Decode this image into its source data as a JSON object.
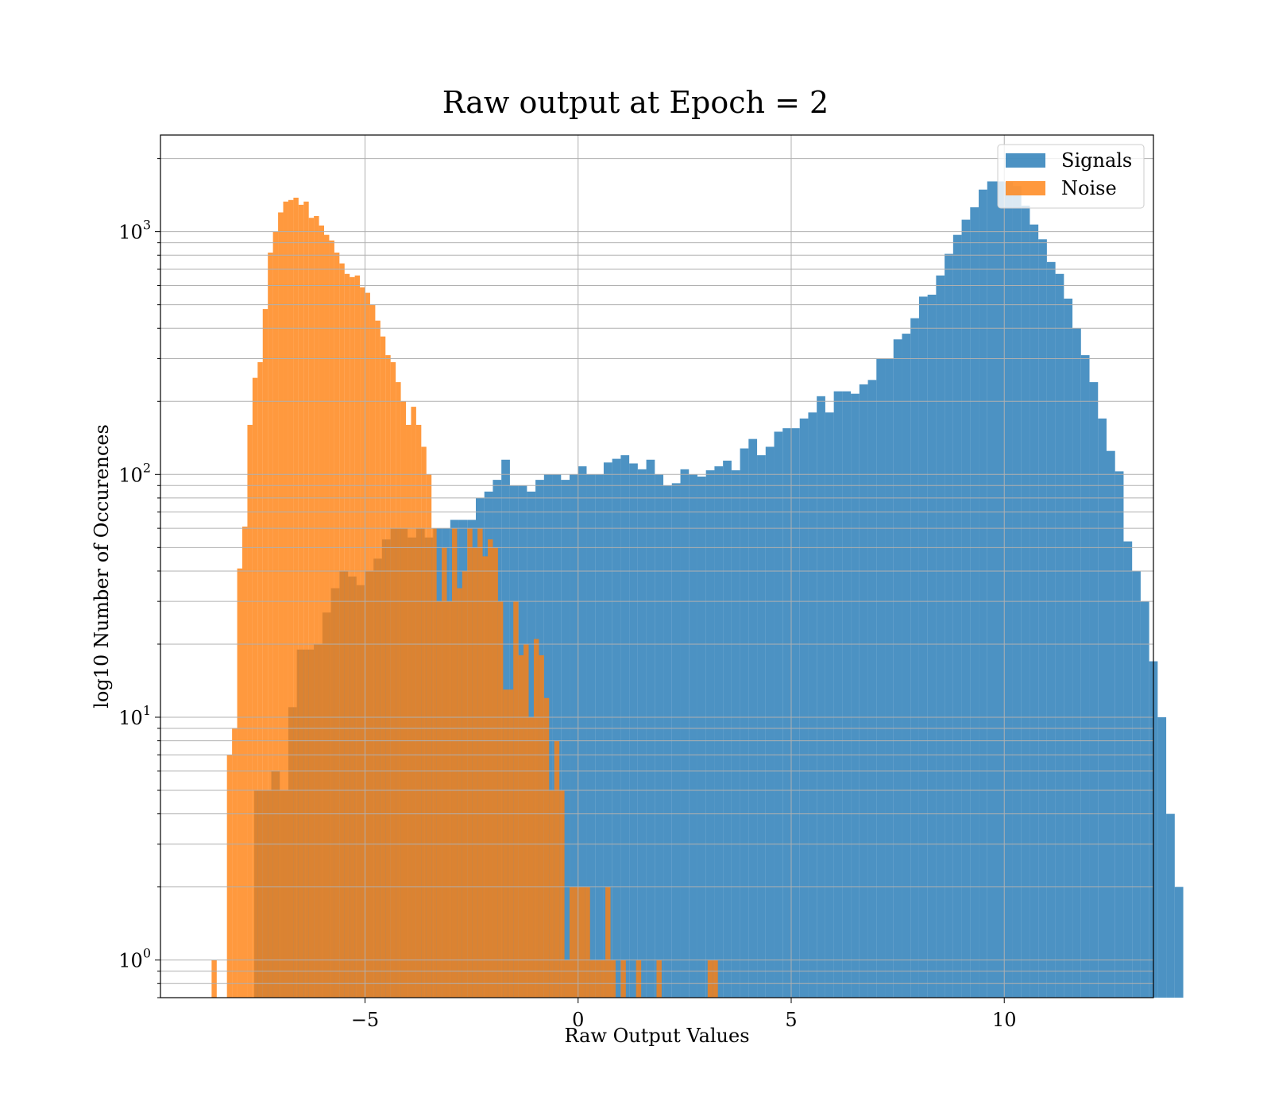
{
  "chart_data": {
    "type": "bar",
    "title": "Raw output at Epoch = 2",
    "xlabel": "Raw Output Values",
    "ylabel": "log10 Number of Occurences",
    "y_scale": "log",
    "grid": true,
    "legend_position": "top-right",
    "xlim": [
      -9.8,
      13.5
    ],
    "ylim": [
      0.7,
      2500
    ],
    "x_ticks": [
      -5,
      0,
      5,
      10
    ],
    "x_tick_labels": [
      "−5",
      "0",
      "5",
      "10"
    ],
    "y_ticks": [
      1,
      10,
      100,
      1000
    ],
    "y_tick_labels": [
      {
        "base": "10",
        "exp": "0"
      },
      {
        "base": "10",
        "exp": "1"
      },
      {
        "base": "10",
        "exp": "2"
      },
      {
        "base": "10",
        "exp": "3"
      }
    ],
    "series": [
      {
        "name": "Signals",
        "color": "#1f77b4",
        "opacity": 0.8,
        "bin_start": -7.6,
        "bin_width": 0.2,
        "counts": [
          5,
          5,
          6,
          5,
          11,
          19,
          19,
          20,
          27,
          34,
          40,
          38,
          35,
          40,
          45,
          54,
          60,
          60,
          55,
          60,
          55,
          60,
          60,
          65,
          65,
          65,
          80,
          85,
          95,
          115,
          90,
          90,
          85,
          95,
          100,
          100,
          95,
          100,
          108,
          100,
          100,
          112,
          116,
          120,
          111,
          105,
          115,
          100,
          90,
          92,
          105,
          100,
          98,
          104,
          108,
          114,
          104,
          128,
          140,
          120,
          130,
          150,
          155,
          155,
          170,
          180,
          210,
          180,
          220,
          220,
          215,
          235,
          245,
          300,
          300,
          360,
          380,
          440,
          540,
          550,
          660,
          810,
          970,
          1120,
          1260,
          1490,
          1610,
          1610,
          1600,
          1540,
          1280,
          1070,
          930,
          750,
          670,
          530,
          400,
          310,
          240,
          170,
          125,
          103,
          53,
          40,
          30,
          17,
          10,
          4,
          2
        ]
      },
      {
        "name": "Noise",
        "color": "#ff7f0e",
        "opacity": 0.8,
        "bin_start": -8.6,
        "bin_width": 0.12,
        "counts": [
          1,
          0,
          0,
          7,
          9,
          41,
          61,
          160,
          250,
          290,
          480,
          820,
          1000,
          1200,
          1330,
          1350,
          1380,
          1290,
          1330,
          1140,
          1160,
          1060,
          970,
          920,
          820,
          740,
          670,
          650,
          660,
          590,
          560,
          500,
          430,
          370,
          310,
          290,
          240,
          200,
          160,
          190,
          160,
          130,
          100,
          60,
          30,
          50,
          30,
          60,
          34,
          40,
          60,
          50,
          60,
          46,
          54,
          50,
          30,
          13,
          13,
          30,
          18,
          20,
          10,
          21,
          18,
          12,
          5,
          8,
          5,
          1,
          2,
          2,
          2,
          2,
          1,
          1,
          1,
          2,
          1,
          0,
          1,
          0,
          0,
          1,
          0,
          0,
          0,
          1,
          0,
          0,
          0,
          0,
          0,
          0,
          0,
          0,
          0,
          1,
          1
        ]
      }
    ]
  }
}
